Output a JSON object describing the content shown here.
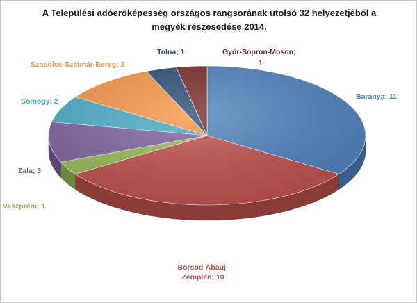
{
  "title_line1": "A Települési adóerőképesség országos rangsorának utolsó 32 helyezetjéből a",
  "title_line2": "megyék részesedése 2014.",
  "chart_data": {
    "type": "pie",
    "title": "A Települési adóerőképesség országos rangsorának utolsó 32 helyezetjéből a megyék részesedése 2014.",
    "three_d": true,
    "legend": "none",
    "slices": [
      {
        "name": "Baranya",
        "value": 11,
        "color": "#4f81bd",
        "label_lines": [
          "Baranya;  11"
        ]
      },
      {
        "name": "Borsod-Abaúj-Zemplén",
        "value": 10,
        "color": "#c0504d",
        "label_lines": [
          "Borsod-Abaúj-",
          "Zemplén; 10"
        ]
      },
      {
        "name": "Veszprém",
        "value": 1,
        "color": "#9bbb59",
        "label_lines": [
          "Veszprém; 1"
        ]
      },
      {
        "name": "Zala",
        "value": 3,
        "color": "#8064a2",
        "label_lines": [
          "Zala;  3"
        ]
      },
      {
        "name": "Somogy",
        "value": 2,
        "color": "#4bacc6",
        "label_lines": [
          "Somogy;  2"
        ]
      },
      {
        "name": "Szabolcs-Szatmár-Bereg",
        "value": 3,
        "color": "#f79646",
        "label_lines": [
          "Szabolcs-Szatmár-Bereg;  3"
        ]
      },
      {
        "name": "Tolna",
        "value": 1,
        "color": "#2c4d75",
        "label_lines": [
          "Tolna;  1"
        ]
      },
      {
        "name": "Győr-Sopron-Moson",
        "value": 1,
        "color": "#772c2a",
        "label_lines": [
          "Győr-Sopron-Moson;",
          "1"
        ]
      }
    ]
  }
}
